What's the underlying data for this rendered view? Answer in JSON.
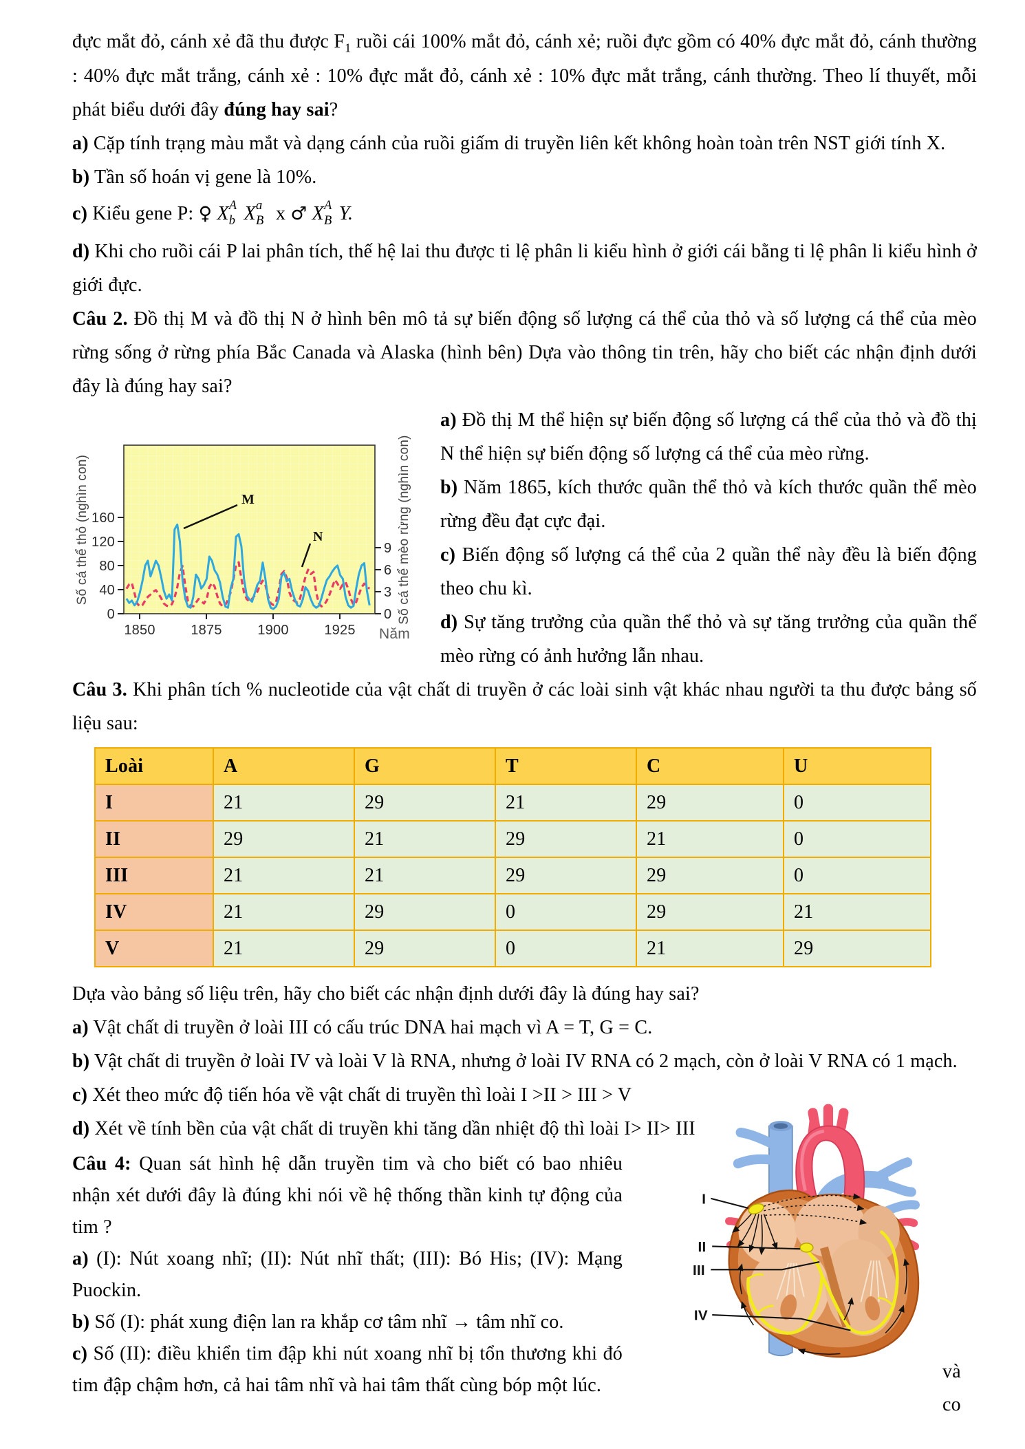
{
  "q1": {
    "intro": {
      "pre_sub": "đực mắt đỏ, cánh xẻ đã thu được F",
      "sub": "1",
      "post_sub": " ruồi cái 100% mắt đỏ, cánh xẻ; ruồi đực gồm có 40% đực mắt đỏ, cánh thường : 40% đực mắt trắng, cánh xẻ : 10% đực mắt đỏ, cánh xẻ : 10% đực mắt trắng, cánh thường. Theo lí thuyết, mỗi phát biểu dưới đây ",
      "bold": "đúng hay sai",
      "end": "?"
    },
    "a_label": "a)",
    "a_text": " Cặp tính trạng màu mắt và dạng cánh của ruồi giấm di truyền liên kết không hoàn toàn trên NST giới tính X.",
    "b_label": "b)",
    "b_text": " Tần số hoán vị gene là 10%.",
    "c_label": "c)",
    "c_prefix": " Kiểu gene P: ",
    "female_symbol": "♀",
    "male_symbol": "♂",
    "cross": " x ",
    "gene1": {
      "base": "X",
      "sup": "A",
      "sub": "b"
    },
    "gene2": {
      "base": "X",
      "sup": "a",
      "sub": "B"
    },
    "gene3": {
      "base": "X",
      "sup": "A",
      "sub": "B"
    },
    "y_end": "Y.",
    "d_label": "d)",
    "d_text": " Khi cho ruồi cái P lai phân tích, thế hệ lai thu được ti lệ phân li kiểu hình ở giới cái bằng ti lệ phân li kiểu hình ở giới đực."
  },
  "q2": {
    "label": "Câu 2.",
    "intro": " Đồ thị M và đồ thị N ở hình bên mô tả sự biến động số lượng cá thể của thỏ và số lượng cá thể của mèo rừng sống ở rừng phía Bắc Canada và Alaska (hình bên) Dựa vào thông tin trên, hãy cho biết các nhận định dưới đây là đúng hay sai?",
    "a_label": "a)",
    "a_text": " Đồ thị M thể hiện sự biến động số lượng cá thể của thỏ và đồ thị N thể hiện sự biến động số lượng cá thể của mèo rừng.",
    "b_label": "b)",
    "b_text": " Năm 1865, kích thước quần thể thỏ và kích thước quần thể mèo rừng đều đạt cực đại.",
    "c_label": "c)",
    "c_text": " Biến động số lượng cá thể của 2 quần thể này đều là biến động theo chu kì.",
    "d_label": "d)",
    "d_text": " Sự tăng trưởng của quần thể thỏ và sự tăng trưởng của quần thể mèo rừng có ảnh hưởng lẫn nhau."
  },
  "chart_data": {
    "type": "line",
    "xlabel": "Năm",
    "ylabel_left": "Số cá thể thỏ (nghìn con)",
    "ylabel_right": "Số cá thể mèo rừng (nghìn con)",
    "x_range": [
      1844,
      1938
    ],
    "x_ticks": [
      1850,
      1875,
      1900,
      1925
    ],
    "yticks_left": [
      0,
      40,
      80,
      120,
      160
    ],
    "yticks_right": [
      0,
      3,
      6,
      9
    ],
    "ylim_left": [
      0,
      280
    ],
    "right_axis_factor": 12.2,
    "background": "#f9f9a8",
    "grid": true,
    "legend_position": "none",
    "series": [
      {
        "name": "M",
        "label": "M",
        "axis": "left",
        "style": "solid",
        "color": "#2fa8df",
        "points": [
          [
            1845,
            25
          ],
          [
            1846,
            18
          ],
          [
            1847,
            22
          ],
          [
            1848,
            14
          ],
          [
            1849,
            20
          ],
          [
            1850,
            35
          ],
          [
            1851,
            55
          ],
          [
            1852,
            80
          ],
          [
            1853,
            88
          ],
          [
            1854,
            62
          ],
          [
            1855,
            75
          ],
          [
            1856,
            88
          ],
          [
            1857,
            80
          ],
          [
            1858,
            60
          ],
          [
            1859,
            38
          ],
          [
            1860,
            25
          ],
          [
            1861,
            32
          ],
          [
            1862,
            22
          ],
          [
            1863,
            140
          ],
          [
            1864,
            148
          ],
          [
            1865,
            120
          ],
          [
            1866,
            55
          ],
          [
            1867,
            25
          ],
          [
            1868,
            12
          ],
          [
            1869,
            10
          ],
          [
            1870,
            28
          ],
          [
            1871,
            65
          ],
          [
            1872,
            58
          ],
          [
            1873,
            42
          ],
          [
            1874,
            48
          ],
          [
            1875,
            58
          ],
          [
            1876,
            95
          ],
          [
            1877,
            88
          ],
          [
            1878,
            72
          ],
          [
            1879,
            65
          ],
          [
            1880,
            52
          ],
          [
            1881,
            28
          ],
          [
            1882,
            12
          ],
          [
            1883,
            10
          ],
          [
            1884,
            42
          ],
          [
            1885,
            58
          ],
          [
            1886,
            128
          ],
          [
            1887,
            132
          ],
          [
            1888,
            112
          ],
          [
            1889,
            58
          ],
          [
            1890,
            30
          ],
          [
            1891,
            24
          ],
          [
            1892,
            20
          ],
          [
            1893,
            34
          ],
          [
            1894,
            48
          ],
          [
            1895,
            55
          ],
          [
            1896,
            85
          ],
          [
            1897,
            58
          ],
          [
            1898,
            24
          ],
          [
            1899,
            10
          ],
          [
            1900,
            8
          ],
          [
            1901,
            12
          ],
          [
            1902,
            24
          ],
          [
            1903,
            62
          ],
          [
            1904,
            68
          ],
          [
            1905,
            54
          ],
          [
            1906,
            58
          ],
          [
            1907,
            38
          ],
          [
            1908,
            24
          ],
          [
            1909,
            14
          ],
          [
            1910,
            12
          ],
          [
            1911,
            24
          ],
          [
            1912,
            44
          ],
          [
            1913,
            38
          ],
          [
            1914,
            24
          ],
          [
            1915,
            14
          ],
          [
            1916,
            10
          ],
          [
            1917,
            13
          ],
          [
            1918,
            26
          ],
          [
            1919,
            42
          ],
          [
            1920,
            56
          ],
          [
            1921,
            62
          ],
          [
            1922,
            70
          ],
          [
            1923,
            76
          ],
          [
            1924,
            80
          ],
          [
            1925,
            64
          ],
          [
            1926,
            58
          ],
          [
            1927,
            28
          ],
          [
            1928,
            14
          ],
          [
            1929,
            10
          ],
          [
            1930,
            13
          ],
          [
            1931,
            42
          ],
          [
            1932,
            66
          ],
          [
            1933,
            80
          ],
          [
            1934,
            84
          ],
          [
            1935,
            38
          ],
          [
            1936,
            14
          ]
        ]
      },
      {
        "name": "N",
        "label": "N",
        "axis": "right",
        "style": "dashed",
        "color": "#e83a62",
        "points": [
          [
            1845,
            3.4
          ],
          [
            1846,
            4.0
          ],
          [
            1847,
            4.2
          ],
          [
            1848,
            2.8
          ],
          [
            1849,
            1.4
          ],
          [
            1850,
            1.0
          ],
          [
            1851,
            1.2
          ],
          [
            1852,
            1.8
          ],
          [
            1853,
            2.3
          ],
          [
            1854,
            2.6
          ],
          [
            1855,
            3.0
          ],
          [
            1856,
            3.2
          ],
          [
            1857,
            2.7
          ],
          [
            1858,
            2.1
          ],
          [
            1859,
            1.4
          ],
          [
            1860,
            1.1
          ],
          [
            1861,
            1.0
          ],
          [
            1862,
            1.3
          ],
          [
            1863,
            2.2
          ],
          [
            1864,
            3.6
          ],
          [
            1865,
            5.6
          ],
          [
            1866,
            6.5
          ],
          [
            1867,
            3.8
          ],
          [
            1868,
            1.7
          ],
          [
            1869,
            1.1
          ],
          [
            1870,
            1.0
          ],
          [
            1871,
            1.5
          ],
          [
            1872,
            2.0
          ],
          [
            1873,
            1.7
          ],
          [
            1874,
            1.4
          ],
          [
            1875,
            2.0
          ],
          [
            1876,
            3.6
          ],
          [
            1877,
            4.2
          ],
          [
            1878,
            3.7
          ],
          [
            1879,
            2.4
          ],
          [
            1880,
            1.4
          ],
          [
            1881,
            1.0
          ],
          [
            1882,
            1.2
          ],
          [
            1883,
            1.9
          ],
          [
            1884,
            2.9
          ],
          [
            1885,
            4.6
          ],
          [
            1886,
            6.6
          ],
          [
            1887,
            7.0
          ],
          [
            1888,
            4.8
          ],
          [
            1889,
            2.9
          ],
          [
            1890,
            2.0
          ],
          [
            1891,
            1.7
          ],
          [
            1892,
            2.0
          ],
          [
            1893,
            2.5
          ],
          [
            1894,
            3.0
          ],
          [
            1895,
            3.9
          ],
          [
            1896,
            4.5
          ],
          [
            1897,
            3.9
          ],
          [
            1898,
            2.4
          ],
          [
            1899,
            1.4
          ],
          [
            1900,
            1.2
          ],
          [
            1901,
            1.6
          ],
          [
            1902,
            3.2
          ],
          [
            1903,
            5.4
          ],
          [
            1904,
            5.8
          ],
          [
            1905,
            4.9
          ],
          [
            1906,
            2.9
          ],
          [
            1907,
            2.0
          ],
          [
            1908,
            1.7
          ],
          [
            1909,
            1.5
          ],
          [
            1910,
            2.1
          ],
          [
            1911,
            3.6
          ],
          [
            1912,
            5.0
          ],
          [
            1913,
            6.0
          ],
          [
            1914,
            5.4
          ],
          [
            1915,
            5.7
          ],
          [
            1916,
            2.9
          ],
          [
            1917,
            1.4
          ],
          [
            1918,
            1.0
          ],
          [
            1919,
            1.2
          ],
          [
            1920,
            1.8
          ],
          [
            1921,
            2.6
          ],
          [
            1922,
            3.6
          ],
          [
            1923,
            4.6
          ],
          [
            1924,
            4.1
          ],
          [
            1925,
            3.4
          ],
          [
            1926,
            4.0
          ],
          [
            1927,
            4.3
          ],
          [
            1928,
            3.4
          ],
          [
            1929,
            2.0
          ],
          [
            1930,
            1.2
          ],
          [
            1931,
            1.6
          ],
          [
            1932,
            2.6
          ],
          [
            1933,
            3.6
          ],
          [
            1934,
            4.1
          ],
          [
            1935,
            3.7
          ],
          [
            1936,
            3.4
          ]
        ]
      }
    ]
  },
  "q3": {
    "label": "Câu 3.",
    "intro": " Khi phân tích % nucleotide của vật chất di truyền ở các loài sinh vật khác nhau người ta thu được bảng số liệu sau:",
    "after_table": "Dựa vào bảng số liệu trên, hãy cho biết các nhận định dưới đây là đúng hay sai?",
    "a_label": "a)",
    "a_text": " Vật chất di truyền ở loài III có cấu trúc DNA hai mạch vì A = T, G = C.",
    "b_label": "b)",
    "b_text": " Vật chất di truyền ở loài IV và loài V là RNA, nhưng ở loài IV RNA có 2 mạch, còn ở loài V RNA có 1 mạch.",
    "c_label": "c)",
    "c_text": " Xét theo mức độ tiến hóa về vật chất di truyền thì loài I >II > III > V",
    "d_label": "d)",
    "d_text": " Xét về tính bền của vật chất di truyền khi tăng dần nhiệt độ thì loài I> II> III"
  },
  "table": {
    "headers": [
      "Loài",
      "A",
      "G",
      "T",
      "C",
      "U"
    ],
    "rows": [
      {
        "label": "I",
        "values": [
          "21",
          "29",
          "21",
          "29",
          "0"
        ]
      },
      {
        "label": "II",
        "values": [
          "29",
          "21",
          "29",
          "21",
          "0"
        ]
      },
      {
        "label": "III",
        "values": [
          "21",
          "21",
          "29",
          "29",
          "0"
        ]
      },
      {
        "label": "IV",
        "values": [
          "21",
          "29",
          "0",
          "29",
          "21"
        ]
      },
      {
        "label": "V",
        "values": [
          "21",
          "29",
          "0",
          "21",
          "29"
        ]
      }
    ]
  },
  "q4": {
    "label": "Câu 4:",
    "intro": " Quan sát hình hệ dẫn truyền tim và cho biết có bao nhiêu nhận xét dưới đây là đúng khi nói về hệ thống thần kinh tự động của tim ?",
    "a_label": "a)",
    "a_text": " (I): Nút xoang nhĩ; (II): Nút nhĩ thất; (III): Bó His; (IV): Mạng Puockin.",
    "b_label": "b)",
    "b_text": " Số (I): phát xung điện lan ra khắp cơ tâm nhĩ → tâm nhĩ co.",
    "c_label": "c)",
    "c_text": " Số (II): điều khiển tim đập khi nút xoang nhĩ bị tổn thương khi đó tim đập chậm hơn, cả hai tâm nhĩ và hai tâm thất cùng bóp một lúc.",
    "cont_word_1": "và",
    "cont_word_2": "co"
  },
  "heart": {
    "labels": [
      "I",
      "II",
      "III",
      "IV"
    ]
  }
}
